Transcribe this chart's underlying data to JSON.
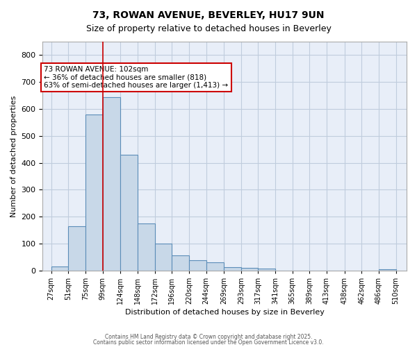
{
  "title1": "73, ROWAN AVENUE, BEVERLEY, HU17 9UN",
  "title2": "Size of property relative to detached houses in Beverley",
  "xlabel": "Distribution of detached houses by size in Beverley",
  "ylabel": "Number of detached properties",
  "bar_color": "#c8d8e8",
  "bar_edge_color": "#5b8db8",
  "bar_left_edges": [
    27,
    51,
    75,
    99,
    124,
    148,
    172,
    196,
    220,
    244,
    269,
    293,
    317,
    341,
    365,
    389,
    413,
    462,
    486
  ],
  "bar_widths": [
    24,
    24,
    24,
    25,
    24,
    24,
    24,
    24,
    24,
    25,
    24,
    24,
    24,
    24,
    24,
    24,
    24,
    24,
    24
  ],
  "bar_heights": [
    15,
    165,
    580,
    645,
    430,
    175,
    100,
    55,
    38,
    30,
    12,
    10,
    8,
    0,
    0,
    0,
    0,
    0,
    5
  ],
  "categories": [
    "27sqm",
    "51sqm",
    "75sqm",
    "99sqm",
    "124sqm",
    "148sqm",
    "172sqm",
    "196sqm",
    "220sqm",
    "244sqm",
    "269sqm",
    "293sqm",
    "317sqm",
    "341sqm",
    "365sqm",
    "389sqm",
    "413sqm",
    "438sqm",
    "462sqm",
    "486sqm",
    "510sqm"
  ],
  "tick_positions": [
    27,
    51,
    75,
    99,
    124,
    148,
    172,
    196,
    220,
    244,
    269,
    293,
    317,
    341,
    365,
    389,
    413,
    438,
    462,
    486,
    510
  ],
  "ylim": [
    0,
    850
  ],
  "xlim": [
    15,
    525
  ],
  "property_line_x": 99,
  "annotation_text": "73 ROWAN AVENUE: 102sqm\n← 36% of detached houses are smaller (818)\n63% of semi-detached houses are larger (1,413) →",
  "annotation_box_color": "#ffffff",
  "annotation_box_edge_color": "#cc0000",
  "annotation_text_color": "#000000",
  "property_line_color": "#cc0000",
  "grid_color": "#c0ccdd",
  "bg_color": "#e8eef8",
  "footer1": "Contains HM Land Registry data © Crown copyright and database right 2025.",
  "footer2": "Contains public sector information licensed under the Open Government Licence v3.0."
}
